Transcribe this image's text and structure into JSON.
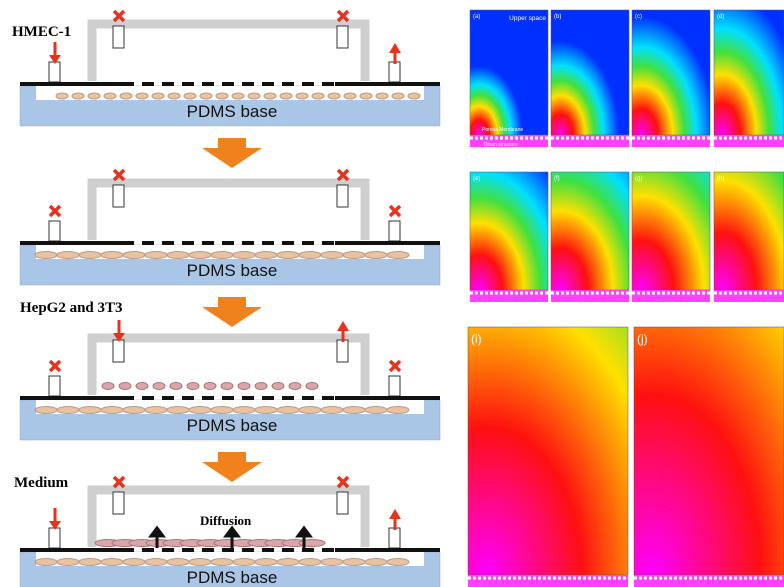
{
  "left_panel": {
    "cell_label_1": "HMEC-1",
    "cell_label_2": "HepG2 and 3T3",
    "medium_label": "Medium",
    "diffusion_label": "Diffusion",
    "steps": [
      {
        "base": "PDMS base"
      },
      {
        "base": "PDMS base"
      },
      {
        "base": "PDMS base"
      },
      {
        "base": "PDMS base"
      }
    ]
  },
  "right_panel": {
    "panels": [
      {
        "label": "(a)"
      },
      {
        "label": "(b)"
      },
      {
        "label": "(c)"
      },
      {
        "label": "(d)"
      },
      {
        "label": "(e)"
      },
      {
        "label": "(f)"
      },
      {
        "label": "(g)"
      },
      {
        "label": "(h)"
      },
      {
        "label": "(i)"
      },
      {
        "label": "(j)"
      }
    ],
    "upper_space": "Upper space",
    "porous_membrane": "Porous Membrane",
    "down_structure": "Down structure"
  }
}
